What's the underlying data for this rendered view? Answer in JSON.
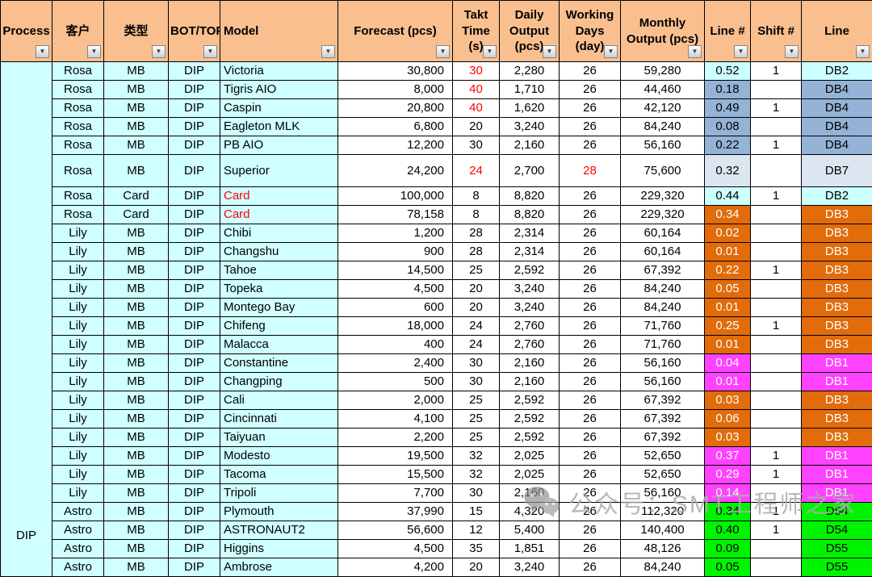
{
  "table": {
    "process_group_label": "DIP",
    "columns": [
      {
        "key": "process",
        "label": "Process"
      },
      {
        "key": "customer",
        "label": "客户"
      },
      {
        "key": "type",
        "label": "类型"
      },
      {
        "key": "bot-top",
        "label": "BOT/TOP"
      },
      {
        "key": "model",
        "label": "Model"
      },
      {
        "key": "forecast",
        "label": "Forecast  (pcs)"
      },
      {
        "key": "takt-time",
        "label": "Takt Time (s)"
      },
      {
        "key": "daily-output",
        "label": "Daily Output (pcs)"
      },
      {
        "key": "working-days",
        "label": "Working Days (day)"
      },
      {
        "key": "monthly-output",
        "label": "Monthly Output  (pcs)"
      },
      {
        "key": "line-count",
        "label": "Line #"
      },
      {
        "key": "shift-count",
        "label": "Shift #"
      },
      {
        "key": "line",
        "label": "Line"
      }
    ],
    "rows": [
      {
        "customer": "Rosa",
        "type": "MB",
        "bot_top": "DIP",
        "model": "Victoria",
        "model_red": false,
        "forecast": "30,800",
        "takt": "30",
        "takt_red": true,
        "daily": "2,280",
        "working": "26",
        "working_red": false,
        "monthly": "59,280",
        "line_no": "0.52",
        "shift": "1",
        "line": "DB2",
        "color": "cyan",
        "tall": false
      },
      {
        "customer": "Rosa",
        "type": "MB",
        "bot_top": "DIP",
        "model": "Tigris AIO",
        "model_red": false,
        "forecast": "8,000",
        "takt": "40",
        "takt_red": true,
        "daily": "1,710",
        "working": "26",
        "working_red": false,
        "monthly": "44,460",
        "line_no": "0.18",
        "shift": "",
        "line": "DB4",
        "color": "blue",
        "tall": false
      },
      {
        "customer": "Rosa",
        "type": "MB",
        "bot_top": "DIP",
        "model": "Caspin",
        "model_red": false,
        "forecast": "20,800",
        "takt": "40",
        "takt_red": true,
        "daily": "1,620",
        "working": "26",
        "working_red": false,
        "monthly": "42,120",
        "line_no": "0.49",
        "shift": "1",
        "line": "DB4",
        "color": "blue",
        "tall": false
      },
      {
        "customer": "Rosa",
        "type": "MB",
        "bot_top": "DIP",
        "model": "Eagleton MLK",
        "model_red": false,
        "forecast": "6,800",
        "takt": "20",
        "takt_red": false,
        "daily": "3,240",
        "working": "26",
        "working_red": false,
        "monthly": "84,240",
        "line_no": "0.08",
        "shift": "",
        "line": "DB4",
        "color": "blue",
        "tall": false
      },
      {
        "customer": "Rosa",
        "type": "MB",
        "bot_top": "DIP",
        "model": "PB AIO",
        "model_red": false,
        "forecast": "12,200",
        "takt": "30",
        "takt_red": false,
        "daily": "2,160",
        "working": "26",
        "working_red": false,
        "monthly": "56,160",
        "line_no": "0.22",
        "shift": "1",
        "line": "DB4",
        "color": "blue",
        "tall": false
      },
      {
        "customer": "Rosa",
        "type": "MB",
        "bot_top": "DIP",
        "model": "Superior",
        "model_red": false,
        "forecast": "24,200",
        "takt": "24",
        "takt_red": true,
        "daily": "2,700",
        "working": "28",
        "working_red": true,
        "monthly": "75,600",
        "line_no": "0.32",
        "shift": "",
        "line": "DB7",
        "color": "pale",
        "tall": true
      },
      {
        "customer": "Rosa",
        "type": "Card",
        "bot_top": "DIP",
        "model": "Card",
        "model_red": true,
        "forecast": "100,000",
        "takt": "8",
        "takt_red": false,
        "daily": "8,820",
        "working": "26",
        "working_red": false,
        "monthly": "229,320",
        "line_no": "0.44",
        "shift": "1",
        "line": "DB2",
        "color": "cyan",
        "tall": false
      },
      {
        "customer": "Rosa",
        "type": "Card",
        "bot_top": "DIP",
        "model": "Card",
        "model_red": true,
        "forecast": "78,158",
        "takt": "8",
        "takt_red": false,
        "daily": "8,820",
        "working": "26",
        "working_red": false,
        "monthly": "229,320",
        "line_no": "0.34",
        "shift": "",
        "line": "DB3",
        "color": "orange",
        "tall": false
      },
      {
        "customer": "Lily",
        "type": "MB",
        "bot_top": "DIP",
        "model": "Chibi",
        "model_red": false,
        "forecast": "1,200",
        "takt": "28",
        "takt_red": false,
        "daily": "2,314",
        "working": "26",
        "working_red": false,
        "monthly": "60,164",
        "line_no": "0.02",
        "shift": "",
        "line": "DB3",
        "color": "orange",
        "tall": false
      },
      {
        "customer": "Lily",
        "type": "MB",
        "bot_top": "DIP",
        "model": "Changshu",
        "model_red": false,
        "forecast": "900",
        "takt": "28",
        "takt_red": false,
        "daily": "2,314",
        "working": "26",
        "working_red": false,
        "monthly": "60,164",
        "line_no": "0.01",
        "shift": "",
        "line": "DB3",
        "color": "orange",
        "tall": false
      },
      {
        "customer": "Lily",
        "type": "MB",
        "bot_top": "DIP",
        "model": "Tahoe",
        "model_red": false,
        "forecast": "14,500",
        "takt": "25",
        "takt_red": false,
        "daily": "2,592",
        "working": "26",
        "working_red": false,
        "monthly": "67,392",
        "line_no": "0.22",
        "shift": "1",
        "line": "DB3",
        "color": "orange",
        "tall": false
      },
      {
        "customer": "Lily",
        "type": "MB",
        "bot_top": "DIP",
        "model": "Topeka",
        "model_red": false,
        "forecast": "4,500",
        "takt": "20",
        "takt_red": false,
        "daily": "3,240",
        "working": "26",
        "working_red": false,
        "monthly": "84,240",
        "line_no": "0.05",
        "shift": "",
        "line": "DB3",
        "color": "orange",
        "tall": false
      },
      {
        "customer": "Lily",
        "type": "MB",
        "bot_top": "DIP",
        "model": "Montego Bay",
        "model_red": false,
        "forecast": "600",
        "takt": "20",
        "takt_red": false,
        "daily": "3,240",
        "working": "26",
        "working_red": false,
        "monthly": "84,240",
        "line_no": "0.01",
        "shift": "",
        "line": "DB3",
        "color": "orange",
        "tall": false
      },
      {
        "customer": "Lily",
        "type": "MB",
        "bot_top": "DIP",
        "model": "Chifeng",
        "model_red": false,
        "forecast": "18,000",
        "takt": "24",
        "takt_red": false,
        "daily": "2,760",
        "working": "26",
        "working_red": false,
        "monthly": "71,760",
        "line_no": "0.25",
        "shift": "1",
        "line": "DB3",
        "color": "orange",
        "tall": false
      },
      {
        "customer": "Lily",
        "type": "MB",
        "bot_top": "DIP",
        "model": "Malacca",
        "model_red": false,
        "forecast": "400",
        "takt": "24",
        "takt_red": false,
        "daily": "2,760",
        "working": "26",
        "working_red": false,
        "monthly": "71,760",
        "line_no": "0.01",
        "shift": "",
        "line": "DB3",
        "color": "orange",
        "tall": false
      },
      {
        "customer": "Lily",
        "type": "MB",
        "bot_top": "DIP",
        "model": "Constantine",
        "model_red": false,
        "forecast": "2,400",
        "takt": "30",
        "takt_red": false,
        "daily": "2,160",
        "working": "26",
        "working_red": false,
        "monthly": "56,160",
        "line_no": "0.04",
        "shift": "",
        "line": "DB1",
        "color": "magenta",
        "tall": false
      },
      {
        "customer": "Lily",
        "type": "MB",
        "bot_top": "DIP",
        "model": "Changping",
        "model_red": false,
        "forecast": "500",
        "takt": "30",
        "takt_red": false,
        "daily": "2,160",
        "working": "26",
        "working_red": false,
        "monthly": "56,160",
        "line_no": "0.01",
        "shift": "",
        "line": "DB1",
        "color": "magenta",
        "tall": false
      },
      {
        "customer": "Lily",
        "type": "MB",
        "bot_top": "DIP",
        "model": "Cali",
        "model_red": false,
        "forecast": "2,000",
        "takt": "25",
        "takt_red": false,
        "daily": "2,592",
        "working": "26",
        "working_red": false,
        "monthly": "67,392",
        "line_no": "0.03",
        "shift": "",
        "line": "DB3",
        "color": "orange",
        "tall": false
      },
      {
        "customer": "Lily",
        "type": "MB",
        "bot_top": "DIP",
        "model": "Cincinnati",
        "model_red": false,
        "forecast": "4,100",
        "takt": "25",
        "takt_red": false,
        "daily": "2,592",
        "working": "26",
        "working_red": false,
        "monthly": "67,392",
        "line_no": "0.06",
        "shift": "",
        "line": "DB3",
        "color": "orange",
        "tall": false
      },
      {
        "customer": "Lily",
        "type": "MB",
        "bot_top": "DIP",
        "model": "Taiyuan",
        "model_red": false,
        "forecast": "2,200",
        "takt": "25",
        "takt_red": false,
        "daily": "2,592",
        "working": "26",
        "working_red": false,
        "monthly": "67,392",
        "line_no": "0.03",
        "shift": "",
        "line": "DB3",
        "color": "orange",
        "tall": false
      },
      {
        "customer": "Lily",
        "type": "MB",
        "bot_top": "DIP",
        "model": "Modesto",
        "model_red": false,
        "forecast": "19,500",
        "takt": "32",
        "takt_red": false,
        "daily": "2,025",
        "working": "26",
        "working_red": false,
        "monthly": "52,650",
        "line_no": "0.37",
        "shift": "1",
        "line": "DB1",
        "color": "magenta",
        "tall": false
      },
      {
        "customer": "Lily",
        "type": "MB",
        "bot_top": "DIP",
        "model": "Tacoma",
        "model_red": false,
        "forecast": "15,500",
        "takt": "32",
        "takt_red": false,
        "daily": "2,025",
        "working": "26",
        "working_red": false,
        "monthly": "52,650",
        "line_no": "0.29",
        "shift": "1",
        "line": "DB1",
        "color": "magenta",
        "tall": false
      },
      {
        "customer": "Lily",
        "type": "MB",
        "bot_top": "DIP",
        "model": "Tripoli",
        "model_red": false,
        "forecast": "7,700",
        "takt": "30",
        "takt_red": false,
        "daily": "2,160",
        "working": "26",
        "working_red": false,
        "monthly": "56,160",
        "line_no": "0.14",
        "shift": "",
        "line": "DB1",
        "color": "magenta",
        "tall": false
      },
      {
        "customer": "Astro",
        "type": "MB",
        "bot_top": "DIP",
        "model": "Plymouth",
        "model_red": false,
        "forecast": "37,990",
        "takt": "15",
        "takt_red": false,
        "daily": "4,320",
        "working": "26",
        "working_red": false,
        "monthly": "112,320",
        "line_no": "0.34",
        "shift": "1",
        "line": "D54",
        "color": "green",
        "tall": false
      },
      {
        "customer": "Astro",
        "type": "MB",
        "bot_top": "DIP",
        "model": "ASTRONAUT2",
        "model_red": false,
        "forecast": "56,600",
        "takt": "12",
        "takt_red": false,
        "daily": "5,400",
        "working": "26",
        "working_red": false,
        "monthly": "140,400",
        "line_no": "0.40",
        "shift": "1",
        "line": "D54",
        "color": "green",
        "tall": false
      },
      {
        "customer": "Astro",
        "type": "MB",
        "bot_top": "DIP",
        "model": "Higgins",
        "model_red": false,
        "forecast": "4,500",
        "takt": "35",
        "takt_red": false,
        "daily": "1,851",
        "working": "26",
        "working_red": false,
        "monthly": "48,126",
        "line_no": "0.09",
        "shift": "",
        "line": "D55",
        "color": "green",
        "tall": false
      },
      {
        "customer": "Astro",
        "type": "MB",
        "bot_top": "DIP",
        "model": "Ambrose",
        "model_red": false,
        "forecast": "4,200",
        "takt": "20",
        "takt_red": false,
        "daily": "3,240",
        "working": "26",
        "working_red": false,
        "monthly": "84,240",
        "line_no": "0.05",
        "shift": "",
        "line": "D55",
        "color": "green",
        "tall": false
      }
    ]
  },
  "icons": {
    "filter_dropdown": "▼",
    "watermark_logo": "wechat-icon"
  },
  "watermark": {
    "text": "公众号：SMT工程师之家"
  },
  "colors": {
    "header_bg": "#FABF8F",
    "row_bg_cyan_cols": "#CFFFFF",
    "line_cyan": "#CCFFFF",
    "line_blue": "#95B3D7",
    "line_pale": "#DCE6F1",
    "line_orange": "#E26B0A",
    "line_magenta": "#FF42FF",
    "line_green": "#00F400",
    "red_text": "#FF0000",
    "grid": "#000000",
    "watermark_gray": "#ACACAC"
  }
}
